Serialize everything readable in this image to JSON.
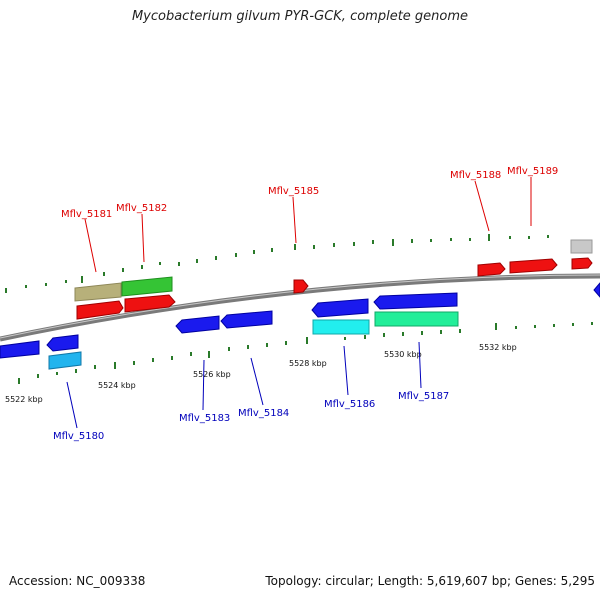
{
  "title": "Mycobacterium gilvum PYR-GCK, complete genome",
  "footer": {
    "accession": "Accession: NC_009338",
    "summary": "Topology: circular; Length: 5,619,607 bp; Genes: 5,295"
  },
  "colors": {
    "backbone": "#888888",
    "tick_minor": "#2a7a2a",
    "forward_label": "#dd0000",
    "reverse_label": "#0000bb",
    "label_line_forward": "#dd0000",
    "label_line_reverse": "#0000bb"
  },
  "scale_labels": [
    "5522 kbp",
    "5524 kbp",
    "5526 kbp",
    "5528 kbp",
    "5530 kbp",
    "5532 kbp"
  ],
  "gene_labels": {
    "top": [
      "Mflv_5181",
      "Mflv_5182",
      "Mflv_5185",
      "Mflv_5188",
      "Mflv_5189"
    ],
    "bottom": [
      "Mflv_5180",
      "Mflv_5183",
      "Mflv_5184",
      "Mflv_5186",
      "Mflv_5187"
    ]
  }
}
